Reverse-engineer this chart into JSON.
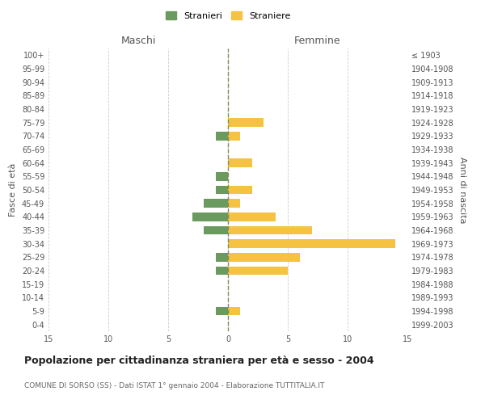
{
  "age_groups": [
    "0-4",
    "5-9",
    "10-14",
    "15-19",
    "20-24",
    "25-29",
    "30-34",
    "35-39",
    "40-44",
    "45-49",
    "50-54",
    "55-59",
    "60-64",
    "65-69",
    "70-74",
    "75-79",
    "80-84",
    "85-89",
    "90-94",
    "95-99",
    "100+"
  ],
  "birth_years": [
    "1999-2003",
    "1994-1998",
    "1989-1993",
    "1984-1988",
    "1979-1983",
    "1974-1978",
    "1969-1973",
    "1964-1968",
    "1959-1963",
    "1954-1958",
    "1949-1953",
    "1944-1948",
    "1939-1943",
    "1934-1938",
    "1929-1933",
    "1924-1928",
    "1919-1923",
    "1914-1918",
    "1909-1913",
    "1904-1908",
    "≤ 1903"
  ],
  "maschi": [
    0,
    1,
    0,
    0,
    1,
    1,
    0,
    2,
    3,
    2,
    1,
    1,
    0,
    0,
    1,
    0,
    0,
    0,
    0,
    0,
    0
  ],
  "femmine": [
    0,
    1,
    0,
    0,
    5,
    6,
    14,
    7,
    4,
    1,
    2,
    0,
    2,
    0,
    1,
    3,
    0,
    0,
    0,
    0,
    0
  ],
  "color_maschi": "#6b9a5e",
  "color_femmine": "#f5c242",
  "background_color": "#ffffff",
  "grid_color": "#cccccc",
  "dashed_line_color": "#888855",
  "title": "Popolazione per cittadinanza straniera per età e sesso - 2004",
  "subtitle": "COMUNE DI SORSO (SS) - Dati ISTAT 1° gennaio 2004 - Elaborazione TUTTITALIA.IT",
  "xlabel_left": "Maschi",
  "xlabel_right": "Femmine",
  "ylabel_left": "Fasce di età",
  "ylabel_right": "Anni di nascita",
  "xlim": 15,
  "legend_stranieri": "Stranieri",
  "legend_straniere": "Straniere"
}
